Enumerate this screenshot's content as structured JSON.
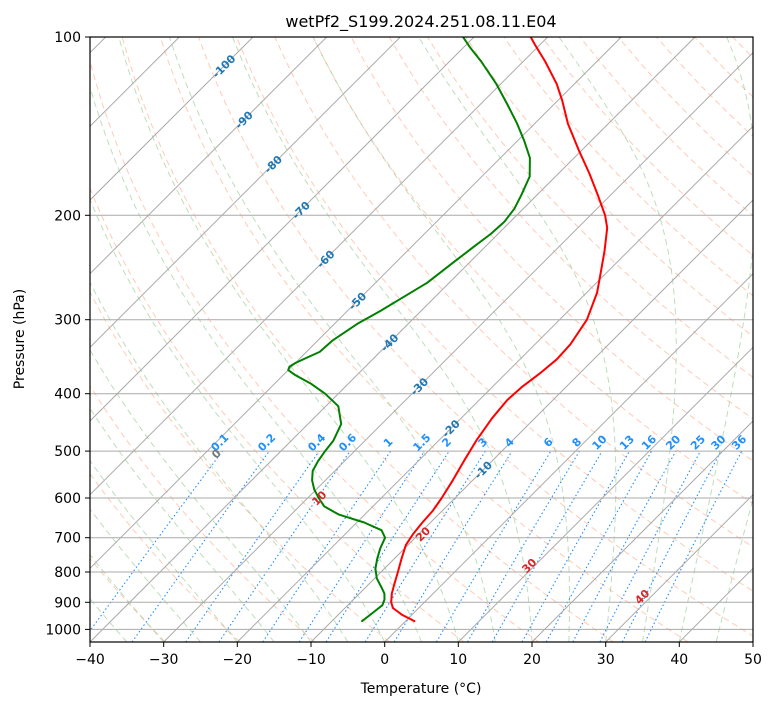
{
  "chart_data": {
    "type": "line",
    "subtype": "skew-t log-p",
    "title": "wetPf2_S199.2024.251.08.11.E04",
    "xlabel": "Temperature (°C)",
    "ylabel": "Pressure (hPa)",
    "xlim": [
      -40,
      50
    ],
    "ylim": [
      1050,
      100
    ],
    "yscale": "log",
    "grid": true,
    "x_ticks": [
      "−40",
      "−30",
      "−20",
      "−10",
      "0",
      "10",
      "20",
      "30",
      "40",
      "50"
    ],
    "y_ticks": [
      "100",
      "200",
      "300",
      "400",
      "500",
      "600",
      "700",
      "800",
      "900",
      "1000"
    ],
    "isotherm_labels": [
      "-100",
      "-90",
      "-80",
      "-70",
      "-60",
      "-50",
      "-40",
      "-30",
      "-20",
      "-10"
    ],
    "mixing_ratio_labels": [
      "0.1",
      "0.2",
      "0.4",
      "0.6",
      "1",
      "1.5",
      "2",
      "3",
      "4",
      "6",
      "8",
      "10",
      "13",
      "16",
      "20",
      "25",
      "30",
      "36"
    ],
    "dry_adiabat_labels": [
      "0",
      "10",
      "20",
      "30",
      "40"
    ],
    "colors": {
      "temperature": "#ff0000",
      "dewpoint": "#008000",
      "isotherm_labels": "#1f77b4",
      "mixing_ratio": "#1e90ff",
      "adiabat_labels": "#d62728",
      "dry_adiabats": "#ffa07a",
      "moist_adiabats": "#90c890",
      "grid": "#aaaaaa"
    },
    "series": [
      {
        "key": "temperature",
        "values": [
          [
            968,
            1.2
          ],
          [
            945,
            -1.3
          ],
          [
            920,
            -3.5
          ],
          [
            900,
            -4.5
          ],
          [
            870,
            -5.6
          ],
          [
            840,
            -6.5
          ],
          [
            800,
            -7.7
          ],
          [
            760,
            -9.0
          ],
          [
            720,
            -10.3
          ],
          [
            690,
            -10.8
          ],
          [
            660,
            -11.1
          ],
          [
            630,
            -11.3
          ],
          [
            600,
            -11.8
          ],
          [
            560,
            -12.7
          ],
          [
            520,
            -13.8
          ],
          [
            480,
            -14.9
          ],
          [
            440,
            -15.8
          ],
          [
            410,
            -16.2
          ],
          [
            390,
            -16.0
          ],
          [
            370,
            -15.4
          ],
          [
            350,
            -15.0
          ],
          [
            330,
            -15.2
          ],
          [
            300,
            -16.3
          ],
          [
            270,
            -18.6
          ],
          [
            250,
            -20.8
          ],
          [
            230,
            -23.2
          ],
          [
            210,
            -26.0
          ],
          [
            200,
            -28.0
          ],
          [
            185,
            -31.7
          ],
          [
            170,
            -35.8
          ],
          [
            155,
            -40.5
          ],
          [
            140,
            -45.5
          ],
          [
            128,
            -49.4
          ],
          [
            120,
            -52.4
          ],
          [
            110,
            -57.0
          ],
          [
            103,
            -60.7
          ],
          [
            100,
            -62.3
          ]
        ]
      },
      {
        "key": "dewpoint",
        "values": [
          [
            968,
            -5.9
          ],
          [
            940,
            -5.6
          ],
          [
            910,
            -5.3
          ],
          [
            890,
            -5.8
          ],
          [
            870,
            -6.6
          ],
          [
            850,
            -7.8
          ],
          [
            820,
            -9.7
          ],
          [
            790,
            -11.2
          ],
          [
            760,
            -12.3
          ],
          [
            730,
            -13.3
          ],
          [
            700,
            -14.1
          ],
          [
            680,
            -15.6
          ],
          [
            660,
            -19.0
          ],
          [
            640,
            -23.5
          ],
          [
            620,
            -26.6
          ],
          [
            600,
            -28.5
          ],
          [
            580,
            -30.3
          ],
          [
            560,
            -31.8
          ],
          [
            540,
            -33.0
          ],
          [
            520,
            -33.6
          ],
          [
            500,
            -34.0
          ],
          [
            480,
            -34.3
          ],
          [
            450,
            -35.5
          ],
          [
            420,
            -38.3
          ],
          [
            400,
            -41.8
          ],
          [
            385,
            -45.0
          ],
          [
            372,
            -48.4
          ],
          [
            365,
            -50.0
          ],
          [
            360,
            -50.3
          ],
          [
            355,
            -50.0
          ],
          [
            348,
            -49.2
          ],
          [
            340,
            -48.2
          ],
          [
            325,
            -48.0
          ],
          [
            305,
            -46.9
          ],
          [
            290,
            -45.5
          ],
          [
            275,
            -44.3
          ],
          [
            260,
            -43.0
          ],
          [
            240,
            -42.2
          ],
          [
            225,
            -41.5
          ],
          [
            215,
            -41.0
          ],
          [
            205,
            -40.8
          ],
          [
            195,
            -41.2
          ],
          [
            185,
            -42.1
          ],
          [
            172,
            -43.5
          ],
          [
            160,
            -46.0
          ],
          [
            150,
            -49.0
          ],
          [
            140,
            -52.4
          ],
          [
            130,
            -56.3
          ],
          [
            120,
            -60.6
          ],
          [
            110,
            -65.7
          ],
          [
            104,
            -69.2
          ],
          [
            100,
            -71.5
          ]
        ]
      }
    ]
  }
}
